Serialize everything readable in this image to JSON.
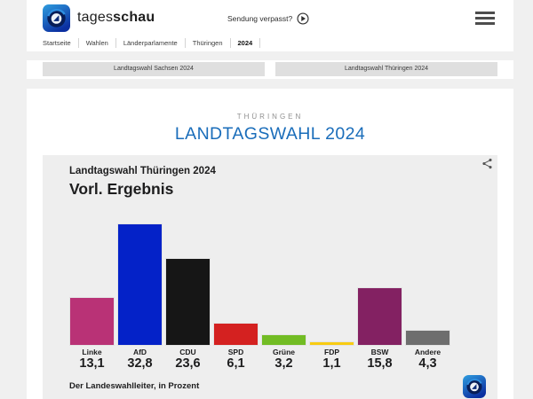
{
  "header": {
    "brand_regular": "tages",
    "brand_bold": "schau",
    "sendung_verpasst": "Sendung verpasst?",
    "breadcrumb": [
      "Startseite",
      "Wahlen",
      "Länderparlamente",
      "Thüringen",
      "2024"
    ]
  },
  "nav_buttons": [
    "Landtagswahl Sachsen 2024",
    "Landtagswahl Thüringen 2024"
  ],
  "page": {
    "kicker": "THÜRINGEN",
    "title": "LANDTAGSWAHL 2024"
  },
  "chart_data": {
    "type": "bar",
    "title": "Landtagswahl Thüringen 2024",
    "subtitle": "Vorl. Ergebnis",
    "source": "Der Landeswahlleiter, in Prozent",
    "categories": [
      "Linke",
      "AfD",
      "CDU",
      "SPD",
      "Grüne",
      "FDP",
      "BSW",
      "Andere"
    ],
    "values": [
      13.1,
      32.8,
      23.6,
      6.1,
      3.2,
      1.1,
      15.8,
      4.3
    ],
    "value_labels": [
      "13,1",
      "32,8",
      "23,6",
      "6,1",
      "3,2",
      "1,1",
      "15,8",
      "4,3"
    ],
    "colors": [
      "#b93276",
      "#0422c8",
      "#161616",
      "#d42120",
      "#72bc24",
      "#f8cc13",
      "#832162",
      "#6e6e6e"
    ],
    "ylim": [
      0,
      35
    ],
    "unit": "Prozent",
    "legend": "none",
    "grid": false
  },
  "colors": {
    "title_blue": "#1a6dba",
    "kicker_gray": "#8f8f8f",
    "card_bg": "#eeeeee",
    "page_bg": "#f0f0f0"
  }
}
